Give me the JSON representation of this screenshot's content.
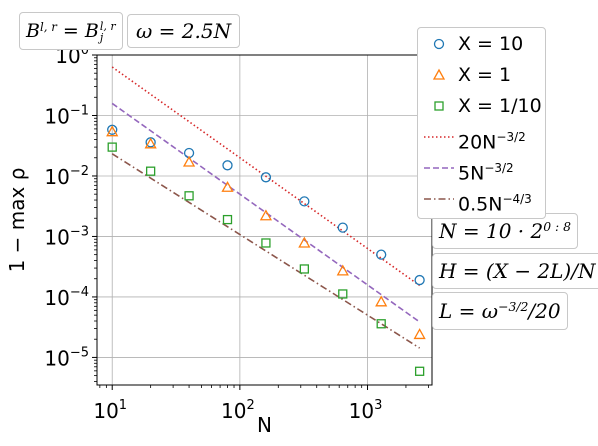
{
  "annotations": {
    "boundary": {
      "lhs": "B",
      "lhs_sup": "l, r",
      "eq": " = ",
      "rhs": "B",
      "rhs_sup": "l, r",
      "rhs_sub": "j"
    },
    "omega": "ω = 2.5N",
    "n_def": {
      "text": "N = 10 · 2",
      "sup": "0 : 8"
    },
    "h_def": "H = (X − 2L)/N",
    "l_def": {
      "pre": "L = ω",
      "sup": "−3/2",
      "post": "/20"
    }
  },
  "legend": [
    {
      "label_main": "X = 10",
      "sup": ""
    },
    {
      "label_main": "X = 1",
      "sup": ""
    },
    {
      "label_main": "X = 1/10",
      "sup": ""
    },
    {
      "label_main": "20N",
      "sup": "−3/2"
    },
    {
      "label_main": "5N",
      "sup": "−3/2"
    },
    {
      "label_main": "0.5N",
      "sup": "−4/3"
    }
  ],
  "colors": {
    "blue": "#1f77b4",
    "orange": "#ff7f0e",
    "green": "#2ca02c",
    "red": "#d62728",
    "purple": "#9467bd",
    "brown": "#8c564b"
  },
  "chart_data": {
    "type": "scatter",
    "xlabel": "N",
    "ylabel": "1 − max ρ",
    "xscale": "log",
    "yscale": "log",
    "xlim": [
      7.6,
      3200
    ],
    "ylim": [
      3.5e-06,
      1
    ],
    "x_ticks": [
      {
        "v": 10,
        "label": "10",
        "exp": "1"
      },
      {
        "v": 100,
        "label": "10",
        "exp": "2"
      },
      {
        "v": 1000,
        "label": "10",
        "exp": "3"
      }
    ],
    "y_ticks": [
      {
        "v": 1e-05,
        "label": "10",
        "exp": "−5"
      },
      {
        "v": 0.0001,
        "label": "10",
        "exp": "−4"
      },
      {
        "v": 0.001,
        "label": "10",
        "exp": "−3"
      },
      {
        "v": 0.01,
        "label": "10",
        "exp": "−2"
      },
      {
        "v": 0.1,
        "label": "10",
        "exp": "−1"
      },
      {
        "v": 1,
        "label": "10",
        "exp": "0"
      }
    ],
    "grid": true,
    "legend_position": "right, outside top",
    "x": [
      10,
      20,
      40,
      80,
      160,
      320,
      640,
      1280,
      2560
    ],
    "series": [
      {
        "name": "X = 10",
        "kind": "points",
        "marker": "circle",
        "color": "#1f77b4",
        "values": [
          0.058,
          0.036,
          0.024,
          0.015,
          0.0095,
          0.0038,
          0.0014,
          0.0005,
          0.00019
        ]
      },
      {
        "name": "X = 1",
        "kind": "points",
        "marker": "triangle",
        "color": "#ff7f0e",
        "values": [
          0.054,
          0.034,
          0.017,
          0.0065,
          0.0022,
          0.00078,
          0.00027,
          8.3e-05,
          2.4e-05
        ]
      },
      {
        "name": "X = 1/10",
        "kind": "points",
        "marker": "square",
        "color": "#2ca02c",
        "values": [
          0.03,
          0.012,
          0.0047,
          0.0019,
          0.00078,
          0.00029,
          0.000112,
          3.6e-05,
          5.9e-06
        ]
      },
      {
        "name": "20N^(−3/2)",
        "kind": "line",
        "dash": "dotted",
        "color": "#d62728",
        "coef": 20,
        "power": -1.5
      },
      {
        "name": "5N^(−3/2)",
        "kind": "line",
        "dash": "dashed",
        "color": "#9467bd",
        "coef": 5,
        "power": -1.5
      },
      {
        "name": "0.5N^(−4/3)",
        "kind": "line",
        "dash": "dashdot",
        "color": "#8c564b",
        "coef": 0.5,
        "power": -1.3333333
      }
    ]
  }
}
